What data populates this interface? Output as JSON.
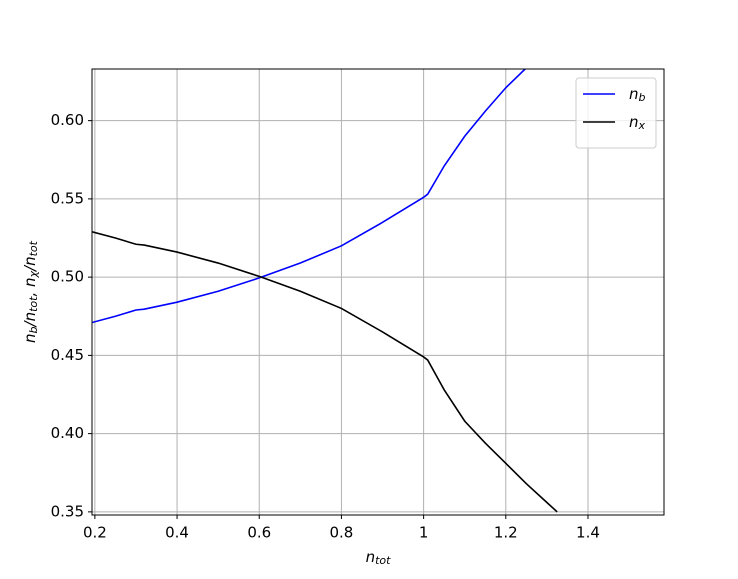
{
  "chart_data": {
    "type": "line",
    "xlabel": [
      "n",
      "tot"
    ],
    "ylabel": [
      "n",
      "b",
      "/n",
      "tot",
      ", n",
      "χ",
      "/n",
      "tot"
    ],
    "xlim": [
      0.193,
      1.585
    ],
    "ylim": [
      0.348,
      0.633
    ],
    "xticks": [
      0.2,
      0.4,
      0.6,
      0.8,
      1.0,
      1.2,
      1.4
    ],
    "yticks": [
      0.35,
      {
        "value": 0.4,
        "label": "0.40"
      },
      0.45,
      {
        "value": 0.5,
        "label": "0.50"
      },
      0.55,
      {
        "value": 0.6,
        "label": "0.60"
      }
    ],
    "grid": true,
    "legend": "upper right",
    "series": [
      {
        "name": [
          "n",
          "b"
        ],
        "color": "#0000ff",
        "x": [
          0.193,
          0.25,
          0.3,
          0.32,
          0.4,
          0.5,
          0.6,
          0.7,
          0.8,
          0.9,
          1.0,
          1.01,
          1.05,
          1.1,
          1.15,
          1.2,
          1.247
        ],
        "values": [
          0.471,
          0.475,
          0.479,
          0.4795,
          0.484,
          0.491,
          0.4995,
          0.509,
          0.52,
          0.535,
          0.551,
          0.553,
          0.571,
          0.59,
          0.606,
          0.621,
          0.633
        ]
      },
      {
        "name": [
          "n",
          "x"
        ],
        "color": "#000000",
        "x": [
          0.193,
          0.25,
          0.3,
          0.32,
          0.4,
          0.5,
          0.6,
          0.7,
          0.8,
          0.9,
          1.0,
          1.01,
          1.05,
          1.1,
          1.15,
          1.2,
          1.25,
          1.3,
          1.325
        ],
        "values": [
          0.529,
          0.525,
          0.521,
          0.5205,
          0.516,
          0.509,
          0.5005,
          0.491,
          0.48,
          0.465,
          0.449,
          0.447,
          0.428,
          0.408,
          0.394,
          0.381,
          0.368,
          0.356,
          0.35
        ]
      }
    ]
  }
}
